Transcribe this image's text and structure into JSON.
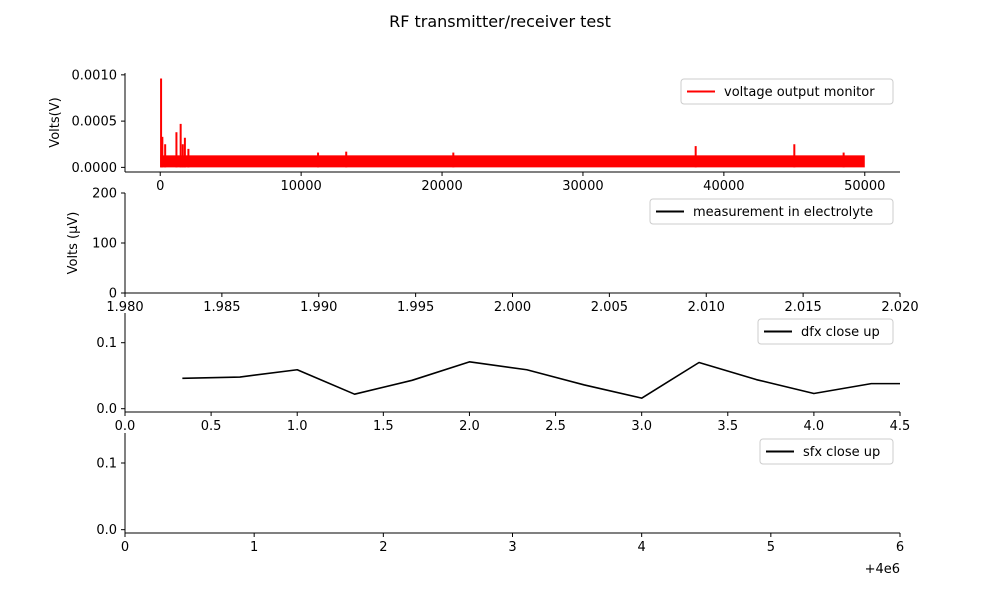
{
  "figure": {
    "title": "RF transmitter/receiver test"
  },
  "chart_data": [
    {
      "type": "line",
      "ylabel": "Volts(V)",
      "xlim": [
        -2500,
        52500
      ],
      "ylim": [
        -5e-05,
        0.00102
      ],
      "xticks": [
        0,
        10000,
        20000,
        30000,
        40000,
        50000
      ],
      "xtick_labels": [
        "0",
        "10000",
        "20000",
        "30000",
        "40000",
        "50000"
      ],
      "yticks": [
        0.0,
        0.0005,
        0.001
      ],
      "ytick_labels": [
        "0.0000",
        "0.0005",
        "0.0010"
      ],
      "legend": {
        "position": "upper right",
        "entries": [
          {
            "label": "voltage output monitor",
            "color": "#ff0000"
          }
        ]
      },
      "series": [
        {
          "name": "voltage output monitor",
          "color": "#ff0000",
          "band": {
            "x_start": 0,
            "x_end": 50000,
            "low": 0.0,
            "high": 0.00013
          },
          "spikes": [
            {
              "x": 60,
              "y": 0.00096
            },
            {
              "x": 150,
              "y": 0.00033
            },
            {
              "x": 350,
              "y": 0.00025
            },
            {
              "x": 1150,
              "y": 0.00038
            },
            {
              "x": 1450,
              "y": 0.00047
            },
            {
              "x": 1600,
              "y": 0.00025
            },
            {
              "x": 1750,
              "y": 0.00032
            },
            {
              "x": 2000,
              "y": 0.0002
            },
            {
              "x": 11200,
              "y": 0.00016
            },
            {
              "x": 13200,
              "y": 0.00017
            },
            {
              "x": 20800,
              "y": 0.00016
            },
            {
              "x": 38000,
              "y": 0.00023
            },
            {
              "x": 45000,
              "y": 0.00025
            },
            {
              "x": 48500,
              "y": 0.00016
            }
          ]
        }
      ]
    },
    {
      "type": "line",
      "ylabel": "Volts (μV)",
      "xlim": [
        1.98,
        2.02
      ],
      "ylim": [
        0,
        200
      ],
      "xticks": [
        1.98,
        1.985,
        1.99,
        1.995,
        2.0,
        2.005,
        2.01,
        2.015,
        2.02
      ],
      "xtick_labels": [
        "1.980",
        "1.985",
        "1.990",
        "1.995",
        "2.000",
        "2.005",
        "2.010",
        "2.015",
        "2.020"
      ],
      "yticks": [
        0,
        100,
        200
      ],
      "ytick_labels": [
        "0",
        "100",
        "200"
      ],
      "legend": {
        "position": "upper right",
        "entries": [
          {
            "label": "measurement in electrolyte",
            "color": "#000000"
          }
        ]
      },
      "series": [
        {
          "name": "measurement in electrolyte",
          "color": "#000000",
          "x": [],
          "y": []
        }
      ]
    },
    {
      "type": "line",
      "xlim": [
        0,
        4.5
      ],
      "ylim": [
        -0.005,
        0.145
      ],
      "xticks": [
        0.0,
        0.5,
        1.0,
        1.5,
        2.0,
        2.5,
        3.0,
        3.5,
        4.0,
        4.5
      ],
      "xtick_labels": [
        "0.0",
        "0.5",
        "1.0",
        "1.5",
        "2.0",
        "2.5",
        "3.0",
        "3.5",
        "4.0",
        "4.5"
      ],
      "yticks": [
        0.0,
        0.1
      ],
      "ytick_labels": [
        "0.0",
        "0.1"
      ],
      "legend": {
        "position": "upper right",
        "entries": [
          {
            "label": "dfx close up",
            "color": "#000000"
          }
        ]
      },
      "series": [
        {
          "name": "dfx close up",
          "color": "#000000",
          "x": [
            0.333,
            0.667,
            1.0,
            1.333,
            1.667,
            2.0,
            2.333,
            2.667,
            3.0,
            3.333,
            3.667,
            4.0,
            4.333,
            4.5
          ],
          "y": [
            0.046,
            0.048,
            0.059,
            0.022,
            0.043,
            0.071,
            0.059,
            0.036,
            0.016,
            0.07,
            0.044,
            0.023,
            0.038,
            0.038
          ]
        }
      ]
    },
    {
      "type": "line",
      "xlim": [
        0,
        6
      ],
      "ylim": [
        -0.005,
        0.145
      ],
      "xticks": [
        0,
        1,
        2,
        3,
        4,
        5,
        6
      ],
      "xtick_labels": [
        "0",
        "1",
        "2",
        "3",
        "4",
        "5",
        "6"
      ],
      "x_offset_label": "+4e6",
      "yticks": [
        0.0,
        0.1
      ],
      "ytick_labels": [
        "0.0",
        "0.1"
      ],
      "legend": {
        "position": "upper right",
        "entries": [
          {
            "label": "sfx close up",
            "color": "#000000"
          }
        ]
      },
      "series": [
        {
          "name": "sfx close up",
          "color": "#000000",
          "x": [],
          "y": []
        }
      ]
    }
  ]
}
